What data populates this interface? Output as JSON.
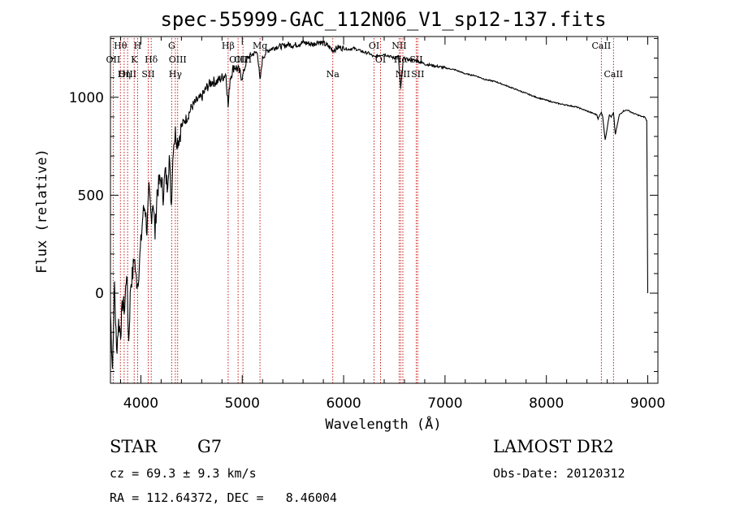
{
  "chart_data": {
    "type": "line",
    "title": "spec-55999-GAC_112N06_V1_sp12-137.fits",
    "xlabel": "Wavelength (Å)",
    "ylabel": "Flux (relative)",
    "xlim": [
      3700,
      9100
    ],
    "ylim": [
      -460,
      1310
    ],
    "x_ticks": [
      4000,
      5000,
      6000,
      7000,
      8000,
      9000
    ],
    "y_ticks": [
      0,
      500,
      1000
    ],
    "grid": false,
    "series": [
      {
        "name": "spectrum",
        "x": [
          3700,
          3720,
          3740,
          3760,
          3780,
          3800,
          3820,
          3840,
          3860,
          3880,
          3900,
          3920,
          3935,
          3950,
          3968,
          3985,
          4000,
          4020,
          4040,
          4060,
          4080,
          4102,
          4120,
          4140,
          4160,
          4180,
          4200,
          4220,
          4240,
          4260,
          4280,
          4300,
          4320,
          4340,
          4360,
          4380,
          4400,
          4430,
          4460,
          4500,
          4550,
          4600,
          4650,
          4700,
          4750,
          4800,
          4840,
          4861,
          4880,
          4920,
          4960,
          5000,
          5050,
          5100,
          5150,
          5175,
          5200,
          5250,
          5300,
          5350,
          5400,
          5450,
          5500,
          5550,
          5600,
          5650,
          5700,
          5750,
          5800,
          5850,
          5893,
          5950,
          6000,
          6050,
          6100,
          6150,
          6200,
          6250,
          6300,
          6350,
          6400,
          6450,
          6500,
          6540,
          6563,
          6590,
          6650,
          6700,
          6750,
          6800,
          6900,
          7000,
          7100,
          7200,
          7300,
          7400,
          7500,
          7600,
          7700,
          7800,
          7900,
          8000,
          8100,
          8200,
          8300,
          8400,
          8450,
          8498,
          8510,
          8542,
          8556,
          8580,
          8620,
          8640,
          8662,
          8680,
          8720,
          8760,
          8800,
          8850,
          8900,
          8950,
          8970,
          8990,
          9000
        ],
        "values": [
          -100,
          -380,
          50,
          -300,
          -150,
          -200,
          -50,
          -80,
          120,
          -250,
          50,
          100,
          200,
          80,
          50,
          150,
          250,
          400,
          450,
          320,
          520,
          380,
          480,
          300,
          520,
          560,
          580,
          500,
          620,
          550,
          700,
          450,
          760,
          820,
          780,
          800,
          850,
          880,
          900,
          950,
          980,
          1000,
          1050,
          1080,
          1080,
          1100,
          1120,
          950,
          1100,
          1160,
          1140,
          1100,
          1200,
          1220,
          1230,
          1080,
          1200,
          1240,
          1250,
          1260,
          1260,
          1270,
          1265,
          1270,
          1280,
          1275,
          1270,
          1285,
          1275,
          1260,
          1240,
          1255,
          1250,
          1245,
          1250,
          1240,
          1230,
          1225,
          1205,
          1215,
          1220,
          1210,
          1200,
          1210,
          1040,
          1200,
          1190,
          1190,
          1180,
          1170,
          1160,
          1150,
          1140,
          1120,
          1110,
          1090,
          1080,
          1060,
          1040,
          1020,
          1000,
          985,
          970,
          960,
          950,
          930,
          920,
          910,
          890,
          925,
          900,
          780,
          910,
          900,
          920,
          810,
          910,
          930,
          935,
          920,
          910,
          900,
          900,
          880,
          0
        ]
      }
    ],
    "line_markers": [
      {
        "label": "Hθ",
        "x": 3798,
        "row": 0
      },
      {
        "label": "OII",
        "x": 3727,
        "row": 1
      },
      {
        "label": "OIII",
        "x": 3869,
        "row": 2
      },
      {
        "label": "Hη",
        "x": 3835,
        "row": 2
      },
      {
        "label": "H",
        "x": 3968,
        "row": 0
      },
      {
        "label": "K",
        "x": 3934,
        "row": 1
      },
      {
        "label": "Hδ",
        "x": 4102,
        "row": 1
      },
      {
        "label": "SII",
        "x": 4072,
        "row": 2
      },
      {
        "label": "G",
        "x": 4304,
        "row": 0
      },
      {
        "label": "OIII",
        "x": 4363,
        "row": 1
      },
      {
        "label": "Hγ",
        "x": 4340,
        "row": 2
      },
      {
        "label": "Hβ",
        "x": 4861,
        "row": 0
      },
      {
        "label": "OIII",
        "x": 4959,
        "row": 1
      },
      {
        "label": "OIII",
        "x": 5007,
        "row": 1
      },
      {
        "label": "Mg",
        "x": 5175,
        "row": 0
      },
      {
        "label": "Na",
        "x": 5893,
        "row": 2
      },
      {
        "label": "OI",
        "x": 6300,
        "row": 0
      },
      {
        "label": "OI",
        "x": 6364,
        "row": 1
      },
      {
        "label": "NII",
        "x": 6548,
        "row": 0
      },
      {
        "label": "Hα",
        "x": 6563,
        "row": 1
      },
      {
        "label": "NII",
        "x": 6584,
        "row": 2
      },
      {
        "label": "SII",
        "x": 6716,
        "row": 1
      },
      {
        "label": "SII",
        "x": 6731,
        "row": 2
      },
      {
        "label": "CaII",
        "x": 8542,
        "row": 0
      },
      {
        "label": "CaII",
        "x": 8662,
        "row": 2
      }
    ]
  },
  "footer": {
    "object_class": "STAR",
    "subclass": "G7",
    "survey": "LAMOST DR2",
    "redshift": "cz = 69.3 ± 9.3 km/s",
    "obs_date": "Obs-Date: 20120312",
    "coords": "RA = 112.64372, DEC =   8.46004"
  }
}
